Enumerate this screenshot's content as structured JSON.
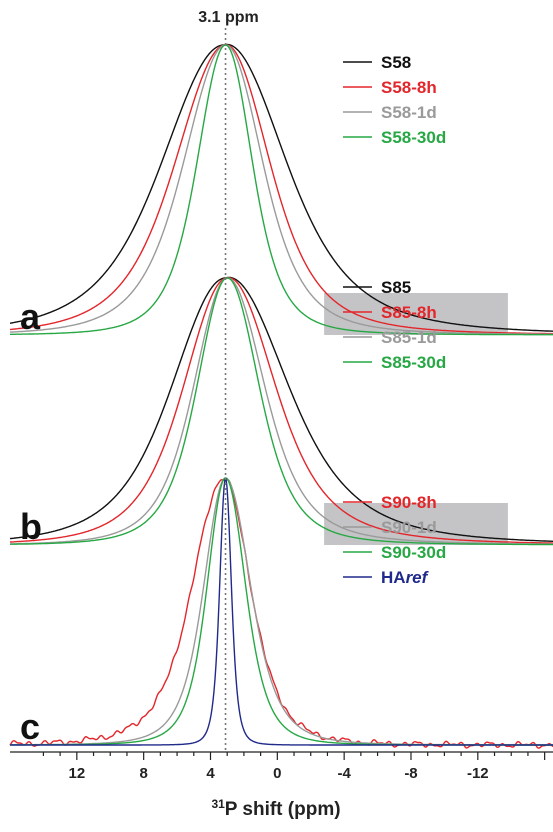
{
  "chart_data": {
    "type": "line",
    "title": "",
    "xlabel_sup": "31",
    "xlabel": "P shift (ppm)",
    "ylabel": "",
    "xlim": [
      16,
      -16.5
    ],
    "x_reversed": true,
    "x_ticks": [
      12,
      8,
      4,
      0,
      -4,
      -8,
      -12
    ],
    "reference_line": {
      "ppm": 3.1,
      "label": "3.1 ppm"
    },
    "shaded_range_ppm": [
      -2.8,
      -13.8
    ],
    "panels": [
      {
        "label": "a",
        "shaded": true,
        "legend": [
          {
            "name": "S58",
            "color": "#111111"
          },
          {
            "name": "S58-8h",
            "color": "#e3262b"
          },
          {
            "name": "S58-1d",
            "color": "#9a9a9a"
          },
          {
            "name": "S58-30d",
            "color": "#27a845"
          }
        ],
        "series": [
          {
            "color": "#111111",
            "center": 3.2,
            "hwhm_left": 3.7,
            "hwhm_right": 3.6,
            "tail": 0.045
          },
          {
            "color": "#e3262b",
            "center": 3.1,
            "hwhm_left": 3.0,
            "hwhm_right": 2.6,
            "tail": 0.02
          },
          {
            "color": "#9a9a9a",
            "center": 3.1,
            "hwhm_left": 2.5,
            "hwhm_right": 2.2,
            "tail": 0.012
          },
          {
            "color": "#27a845",
            "center": 3.1,
            "hwhm_left": 1.7,
            "hwhm_right": 1.6,
            "tail": 0.005
          }
        ]
      },
      {
        "label": "b",
        "shaded": true,
        "legend": [
          {
            "name": "S85",
            "color": "#111111"
          },
          {
            "name": "S85-8h",
            "color": "#e3262b"
          },
          {
            "name": "S85-1d",
            "color": "#9a9a9a"
          },
          {
            "name": "S85-30d",
            "color": "#27a845"
          }
        ],
        "series": [
          {
            "color": "#111111",
            "center": 3.1,
            "hwhm_left": 3.2,
            "hwhm_right": 3.6,
            "tail": 0.05
          },
          {
            "color": "#e3262b",
            "center": 3.0,
            "hwhm_left": 2.6,
            "hwhm_right": 2.8,
            "tail": 0.035
          },
          {
            "color": "#9a9a9a",
            "center": 3.0,
            "hwhm_left": 2.0,
            "hwhm_right": 2.2,
            "tail": 0.02
          },
          {
            "color": "#27a845",
            "center": 3.0,
            "hwhm_left": 1.8,
            "hwhm_right": 1.9,
            "tail": 0.008
          }
        ]
      },
      {
        "label": "c",
        "shaded": false,
        "legend": [
          {
            "name": "S90-8h",
            "color": "#e3262b"
          },
          {
            "name": "S90-1d",
            "color": "#9a9a9a"
          },
          {
            "name": "S90-30d",
            "color": "#27a845"
          },
          {
            "name": "HA",
            "name_italic": "ref",
            "color": "#1f2a8a"
          }
        ],
        "series": [
          {
            "color": "#e3262b",
            "center": 3.2,
            "hwhm_left": 1.9,
            "hwhm_right": 1.6,
            "tail": 0.0,
            "noise": true
          },
          {
            "color": "#9a9a9a",
            "center": 3.1,
            "hwhm_left": 1.3,
            "hwhm_right": 1.5,
            "tail": 0.0
          },
          {
            "color": "#27a845",
            "center": 3.1,
            "hwhm_left": 1.1,
            "hwhm_right": 1.2,
            "tail": 0.0
          },
          {
            "color": "#1f2a8a",
            "center": 3.1,
            "hwhm_left": 0.35,
            "hwhm_right": 0.35,
            "tail": 0.0
          }
        ]
      }
    ]
  }
}
